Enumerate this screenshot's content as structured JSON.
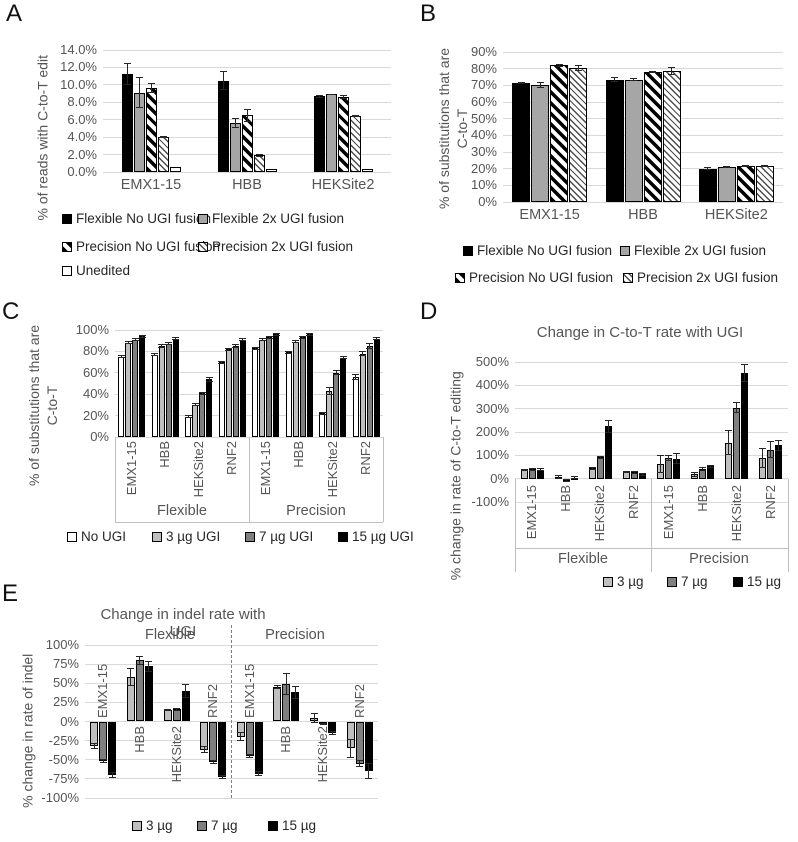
{
  "figure_type": "multi-panel scientific bar chart figure",
  "colors": {
    "bar_black": "#000000",
    "bar_gray": "#a6a6a6",
    "bar_light_gray": "#bfbfbf",
    "bar_dark_gray": "#7f7f7f",
    "bar_white": "#ffffff",
    "gridline": "#d9d9d9",
    "axis_text": "#555555"
  },
  "chart_data": [
    {
      "panel": "A",
      "type": "bar",
      "title": "",
      "ylabel": "% of reads with C-to-T edit",
      "ylim": [
        0,
        14
      ],
      "ytick_step": 2,
      "ytick_format": "percent-1dp",
      "grid": true,
      "legend_position": "bottom-left",
      "categories": [
        "EMX1-15",
        "HBB",
        "HEKSite2"
      ],
      "series": [
        {
          "name": "Flexible No UGI fusion",
          "fill": "black",
          "values": [
            11.2,
            10.5,
            8.7
          ],
          "errors": [
            1.2,
            1.0,
            0.1
          ]
        },
        {
          "name": "Flexible 2x UGI fusion",
          "fill": "gray",
          "values": [
            9.1,
            5.6,
            8.9
          ],
          "errors": [
            1.7,
            0.5,
            0.05
          ]
        },
        {
          "name": "Precision No UGI fusion",
          "fill": "diagonal-stripe-wide",
          "values": [
            9.6,
            6.5,
            8.6
          ],
          "errors": [
            0.5,
            0.7,
            0.2
          ]
        },
        {
          "name": "Precision 2x UGI fusion",
          "fill": "diagonal-stripe-light",
          "values": [
            4.0,
            1.9,
            6.4
          ],
          "errors": [
            0.08,
            0.12,
            0.05
          ]
        },
        {
          "name": "Unedited",
          "fill": "white",
          "values": [
            0.6,
            0.4,
            0.3
          ],
          "errors": [
            0,
            0,
            0
          ]
        }
      ]
    },
    {
      "panel": "B",
      "type": "bar",
      "title": "",
      "ylabel": "% of substitutions that are C-to-T",
      "ylim": [
        0,
        90
      ],
      "ytick_step": 10,
      "ytick_format": "percent-int",
      "grid": true,
      "legend_position": "bottom-left",
      "categories": [
        "EMX1-15",
        "HBB",
        "HEKSite2"
      ],
      "series": [
        {
          "name": "Flexible No UGI fusion",
          "fill": "black",
          "values": [
            71.5,
            73.5,
            20
          ],
          "errors": [
            0.5,
            1.0,
            0.7
          ]
        },
        {
          "name": "Flexible 2x UGI fusion",
          "fill": "gray",
          "values": [
            70.5,
            73.5,
            21
          ],
          "errors": [
            1.5,
            0.4,
            0.3
          ]
        },
        {
          "name": "Precision No UGI fusion",
          "fill": "diagonal-stripe-wide",
          "values": [
            82,
            78,
            21.5
          ],
          "errors": [
            0.4,
            0.3,
            0.3
          ]
        },
        {
          "name": "Precision 2x UGI fusion",
          "fill": "diagonal-stripe-light",
          "values": [
            80.5,
            78.5,
            21.5
          ],
          "errors": [
            1.5,
            2.0,
            0.4
          ]
        }
      ]
    },
    {
      "panel": "C",
      "type": "bar",
      "title": "",
      "ylabel": "% of substitutions that are C-to-T",
      "ylim": [
        0,
        100
      ],
      "ytick_step": 20,
      "ytick_format": "percent-int",
      "grid": true,
      "legend_position": "bottom",
      "groups": [
        "Flexible",
        "Precision"
      ],
      "categories": [
        "EMX1-15",
        "HBB",
        "HEKSite2",
        "RNF2"
      ],
      "series": [
        {
          "name": "No UGI",
          "fill": "white",
          "values": [
            75,
            77,
            19,
            70,
            83,
            79,
            22,
            56
          ],
          "errors": [
            1,
            1,
            1,
            1,
            1,
            1,
            1,
            2
          ]
        },
        {
          "name": "3 µg UGI",
          "fill": "light-gray",
          "values": [
            88,
            85,
            30,
            82,
            91,
            89,
            43,
            78
          ],
          "errors": [
            1,
            1,
            1,
            1,
            1,
            1,
            3,
            2
          ]
        },
        {
          "name": "7 µg UGI",
          "fill": "dark-gray",
          "values": [
            91,
            87,
            41,
            85,
            93,
            93,
            60,
            85
          ],
          "errors": [
            1,
            1,
            1,
            1,
            1,
            1,
            2,
            2
          ]
        },
        {
          "name": "15 µg UGI",
          "fill": "black",
          "values": [
            94,
            92,
            54,
            91,
            96,
            96,
            74,
            92
          ],
          "errors": [
            1,
            1,
            2,
            1,
            1,
            1,
            1,
            1
          ]
        }
      ]
    },
    {
      "panel": "D",
      "type": "bar",
      "title": "Change in C-to-T rate with UGI",
      "ylabel": "% change in rate of C-to-T editing",
      "ylim": [
        -100,
        500
      ],
      "ytick_step": 100,
      "ytick_format": "percent-int",
      "grid": true,
      "legend_position": "bottom",
      "groups": [
        "Flexible",
        "Precision"
      ],
      "categories": [
        "EMX1-15",
        "HBB",
        "HEKSite2",
        "RNF2"
      ],
      "series": [
        {
          "name": "3 µg",
          "fill": "light-gray",
          "values": [
            38,
            7,
            45,
            28,
            63,
            18,
            155,
            88
          ],
          "errors": [
            3,
            5,
            4,
            3,
            38,
            10,
            50,
            42
          ]
        },
        {
          "name": "7 µg",
          "fill": "dark-gray",
          "values": [
            40,
            -6,
            92,
            27,
            88,
            40,
            305,
            125
          ],
          "errors": [
            3,
            4,
            5,
            3,
            10,
            6,
            20,
            35
          ]
        },
        {
          "name": "15 µg",
          "fill": "black",
          "values": [
            38,
            5,
            225,
            18,
            85,
            53,
            452,
            143
          ],
          "errors": [
            4,
            4,
            25,
            4,
            22,
            5,
            36,
            22
          ]
        }
      ]
    },
    {
      "panel": "E",
      "type": "bar",
      "title": "Change in indel rate with UGI",
      "ylabel": "% change in rate of indel",
      "ylim": [
        -100,
        100
      ],
      "ytick_step": 25,
      "ytick_format": "percent-int",
      "grid": true,
      "legend_position": "bottom",
      "groups": [
        "Flexible",
        "Precision"
      ],
      "categories": [
        "EMX1-15",
        "HBB",
        "HEKSite2",
        "RNF2"
      ],
      "series": [
        {
          "name": "3 µg",
          "fill": "light-gray",
          "values": [
            -32,
            58,
            15,
            -37,
            -20,
            45,
            5,
            -35
          ],
          "errors": [
            3,
            11,
            1,
            4,
            5,
            2,
            6,
            12
          ]
        },
        {
          "name": "7 µg",
          "fill": "dark-gray",
          "values": [
            -52,
            80,
            16,
            -53,
            -45,
            49,
            -3,
            -55
          ],
          "errors": [
            2,
            5,
            1,
            2,
            2,
            14,
            1,
            4
          ]
        },
        {
          "name": "15 µg",
          "fill": "black",
          "values": [
            -70,
            72,
            40,
            -73,
            -68,
            38,
            -15,
            -65
          ],
          "errors": [
            3,
            7,
            8,
            2,
            2,
            8,
            2,
            10
          ]
        }
      ]
    }
  ]
}
